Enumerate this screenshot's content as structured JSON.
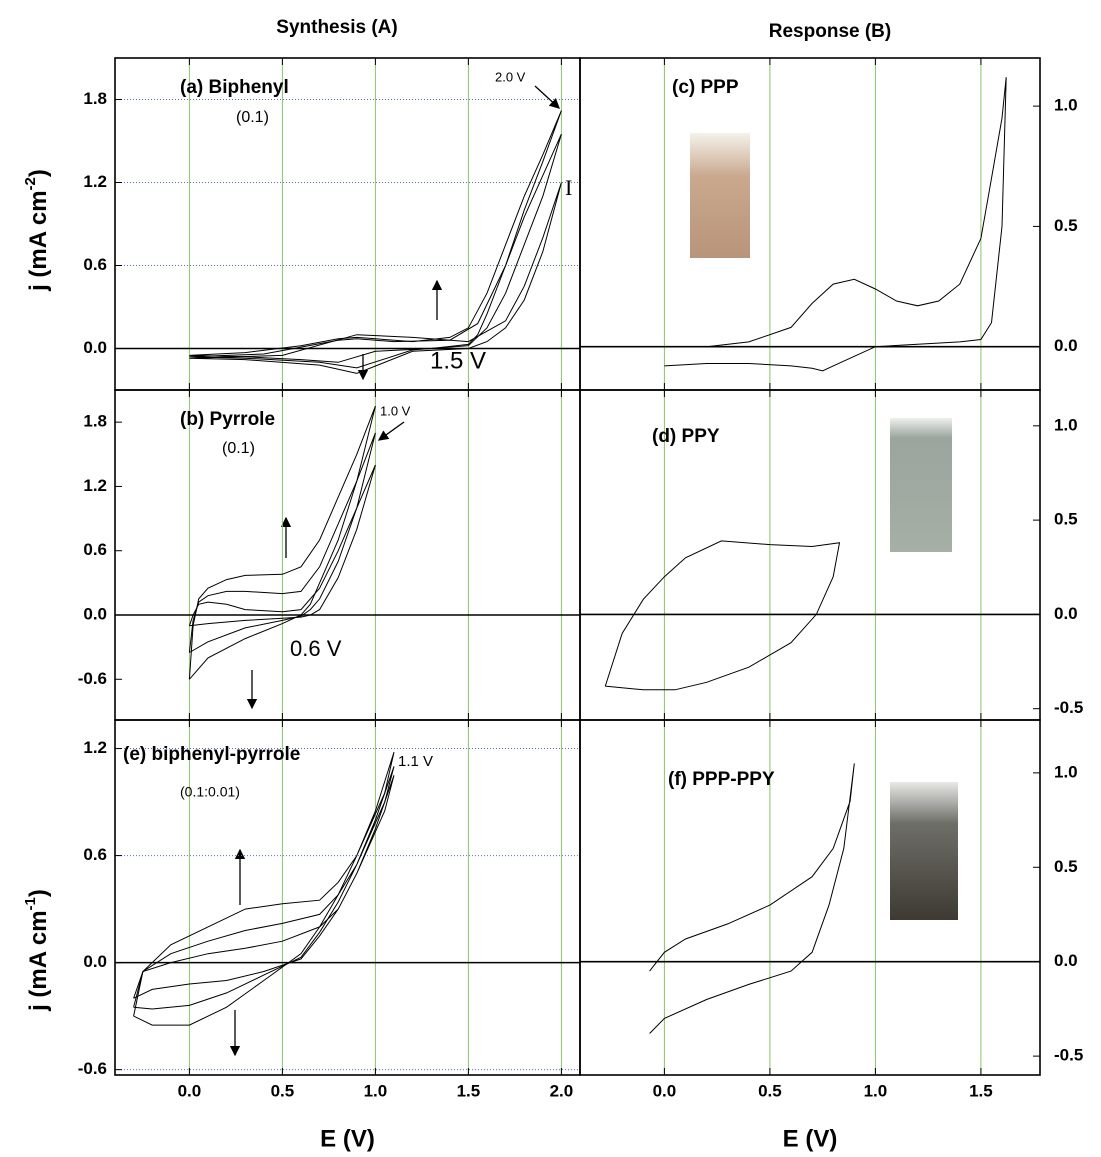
{
  "columns": [
    "Synthesis (A)",
    "Response (B)"
  ],
  "chart_data": [
    {
      "type": "line",
      "title": "(a) Biphenyl",
      "annotations": [
        "(0.1)",
        "2.0 V",
        "I",
        "1.5 V"
      ],
      "ylabel": "j (mA cm",
      "ylabel_sup": "-2",
      "ylabel_end": ")",
      "xlim": [
        -0.4,
        2.1
      ],
      "xticks": [
        {
          "value": 0,
          "label": "0.0"
        },
        0.5,
        {
          "value": 1,
          "label": "1.0"
        },
        1.5,
        {
          "value": 2,
          "label": "2.0"
        }
      ],
      "ylim": [
        -0.3,
        2.1
      ],
      "yticks": [
        {
          "value": 0,
          "label": "0.0"
        },
        0.6,
        1.2,
        1.8
      ],
      "yaxis": "left",
      "xgrid": true,
      "ygrid": true,
      "series": [
        {
          "color": "#000000",
          "x": [
            0,
            0.3,
            0.6,
            0.8,
            0.9,
            1.0,
            1.2,
            1.4,
            1.5,
            1.6,
            1.7,
            1.8,
            1.9,
            2.0,
            1.9,
            1.8,
            1.7,
            1.6,
            1.55,
            1.5,
            1.3,
            1.0,
            0.8,
            0.6,
            0.3,
            0
          ],
          "values": [
            -0.05,
            -0.03,
            0.02,
            0.07,
            0.08,
            0.07,
            0.05,
            0.08,
            0.15,
            0.4,
            0.75,
            1.1,
            1.4,
            1.72,
            1.35,
            1.0,
            0.6,
            0.25,
            0.1,
            0.03,
            0.0,
            -0.02,
            -0.1,
            -0.08,
            -0.06,
            -0.05
          ]
        },
        {
          "color": "#000000",
          "x": [
            0,
            0.4,
            0.8,
            0.9,
            1.1,
            1.4,
            1.55,
            1.7,
            1.8,
            1.9,
            2.0,
            1.9,
            1.8,
            1.7,
            1.6,
            1.5,
            1.2,
            0.9,
            0.7,
            0.3,
            0
          ],
          "values": [
            -0.06,
            -0.04,
            0.06,
            0.07,
            0.05,
            0.06,
            0.18,
            0.6,
            0.95,
            1.25,
            1.55,
            1.1,
            0.75,
            0.4,
            0.15,
            0.02,
            -0.01,
            -0.14,
            -0.1,
            -0.07,
            -0.06
          ]
        },
        {
          "color": "#000000",
          "x": [
            0,
            0.5,
            0.9,
            1.2,
            1.5,
            1.7,
            1.8,
            1.9,
            2.0,
            1.9,
            1.8,
            1.7,
            1.6,
            1.5,
            1.2,
            0.9,
            0.7,
            0.3,
            0
          ],
          "values": [
            -0.07,
            -0.05,
            0.1,
            0.08,
            0.05,
            0.2,
            0.45,
            0.8,
            1.2,
            0.7,
            0.35,
            0.15,
            0.05,
            0.0,
            -0.02,
            -0.18,
            -0.12,
            -0.08,
            -0.07
          ]
        }
      ]
    },
    {
      "type": "line",
      "title": "(b) Pyrrole",
      "annotations": [
        "(0.1)",
        "1.0 V",
        "0.6 V"
      ],
      "xlim": [
        -0.4,
        2.1
      ],
      "xticks": [
        {
          "value": 0,
          "label": "0.0"
        },
        0.5,
        {
          "value": 1,
          "label": "1.0"
        },
        1.5,
        {
          "value": 2,
          "label": "2.0"
        }
      ],
      "ylim": [
        -0.98,
        2.1
      ],
      "yticks": [
        -0.6,
        {
          "value": 0,
          "label": "0.0"
        },
        0.6,
        1.2,
        1.8
      ],
      "yaxis": "left",
      "xgrid": true,
      "ygrid": false,
      "series": [
        {
          "color": "#000000",
          "x": [
            0,
            0.02,
            0.05,
            0.1,
            0.2,
            0.3,
            0.5,
            0.6,
            0.7,
            0.8,
            0.9,
            1.0,
            0.95,
            0.9,
            0.8,
            0.7,
            0.65,
            0.6,
            0.5,
            0.3,
            0.1,
            0
          ],
          "values": [
            -0.6,
            -0.1,
            0.15,
            0.25,
            0.33,
            0.37,
            0.38,
            0.45,
            0.7,
            1.1,
            1.5,
            1.95,
            1.6,
            1.25,
            0.7,
            0.3,
            0.1,
            0.0,
            -0.08,
            -0.22,
            -0.4,
            -0.6
          ]
        },
        {
          "color": "#000000",
          "x": [
            0,
            0.02,
            0.05,
            0.1,
            0.2,
            0.3,
            0.5,
            0.6,
            0.7,
            0.8,
            0.9,
            1.0,
            0.95,
            0.9,
            0.8,
            0.7,
            0.65,
            0.6,
            0.5,
            0.3,
            0.1,
            0
          ],
          "values": [
            -0.35,
            -0.05,
            0.12,
            0.18,
            0.22,
            0.22,
            0.2,
            0.22,
            0.45,
            0.85,
            1.25,
            1.7,
            1.35,
            1.0,
            0.5,
            0.15,
            0.05,
            -0.01,
            -0.05,
            -0.12,
            -0.25,
            -0.35
          ]
        },
        {
          "color": "#000000",
          "x": [
            0,
            0.02,
            0.05,
            0.1,
            0.2,
            0.3,
            0.5,
            0.6,
            0.7,
            0.8,
            0.9,
            1.0,
            0.95,
            0.9,
            0.8,
            0.7,
            0.65,
            0.6,
            0.5,
            0.3,
            0.1,
            0
          ],
          "values": [
            -0.1,
            0.0,
            0.1,
            0.12,
            0.1,
            0.05,
            0.03,
            0.05,
            0.25,
            0.6,
            1.0,
            1.4,
            1.1,
            0.8,
            0.35,
            0.05,
            0.0,
            -0.02,
            -0.03,
            -0.05,
            -0.08,
            -0.1
          ]
        }
      ]
    },
    {
      "type": "line",
      "title": "(c) PPP",
      "xlim": [
        -0.4,
        1.78
      ],
      "xticks": [
        {
          "value": 0,
          "label": "0.0"
        },
        0.5,
        {
          "value": 1,
          "label": "1.0"
        },
        1.5
      ],
      "ylim": [
        -0.18,
        1.2
      ],
      "yticks": [
        {
          "value": 0,
          "label": "0.0"
        },
        0.5,
        {
          "value": 1,
          "label": "1.0"
        }
      ],
      "yaxis": "right",
      "xgrid": true,
      "ygrid": false,
      "series": [
        {
          "color": "#000000",
          "x": [
            0,
            0.2,
            0.4,
            0.6,
            0.7,
            0.8,
            0.9,
            1.0,
            1.1,
            1.2,
            1.3,
            1.4,
            1.5,
            1.55,
            1.6,
            1.62,
            1.6,
            1.55,
            1.5,
            1.4,
            1.2,
            1.0,
            0.9,
            0.8,
            0.75,
            0.7,
            0.6,
            0.4,
            0.2,
            0
          ],
          "values": [
            0,
            0.0,
            0.02,
            0.08,
            0.18,
            0.26,
            0.28,
            0.24,
            0.19,
            0.17,
            0.19,
            0.26,
            0.45,
            0.7,
            0.95,
            1.12,
            0.5,
            0.1,
            0.03,
            0.02,
            0.01,
            0.0,
            -0.04,
            -0.08,
            -0.1,
            -0.09,
            -0.08,
            -0.07,
            -0.07,
            -0.08
          ]
        }
      ]
    },
    {
      "type": "line",
      "title": "(d) PPY",
      "xlim": [
        -0.4,
        1.78
      ],
      "xticks": [
        {
          "value": 0,
          "label": "0.0"
        },
        0.5,
        {
          "value": 1,
          "label": "1.0"
        },
        1.5
      ],
      "ylim": [
        -0.56,
        1.19
      ],
      "yticks": [
        -0.5,
        {
          "value": 0,
          "label": "0.0"
        },
        0.5,
        {
          "value": 1,
          "label": "1.0"
        }
      ],
      "yaxis": "right",
      "xgrid": true,
      "ygrid": false,
      "series": [
        {
          "color": "#000000",
          "x": [
            -0.28,
            -0.2,
            -0.1,
            0.0,
            0.1,
            0.27,
            0.5,
            0.7,
            0.83,
            0.8,
            0.72,
            0.6,
            0.4,
            0.2,
            0.05,
            -0.1,
            -0.28
          ],
          "values": [
            -0.38,
            -0.1,
            0.08,
            0.2,
            0.3,
            0.39,
            0.37,
            0.36,
            0.38,
            0.2,
            0.0,
            -0.15,
            -0.28,
            -0.36,
            -0.4,
            -0.4,
            -0.38
          ]
        }
      ]
    },
    {
      "type": "line",
      "title": "(e) biphenyl-pyrrole",
      "annotations": [
        "(0.1:0.01)",
        "1.1 V"
      ],
      "ylabel": "j (mA cm",
      "ylabel_sup": "-1",
      "ylabel_end": ")",
      "xlabel": "E (V)",
      "xlim": [
        -0.4,
        2.1
      ],
      "xticks": [
        {
          "value": 0,
          "label": "0.0"
        },
        0.5,
        {
          "value": 1,
          "label": "1.0"
        },
        1.5,
        {
          "value": 2,
          "label": "2.0"
        }
      ],
      "ylim": [
        -0.63,
        1.36
      ],
      "yticks": [
        -0.6,
        {
          "value": 0,
          "label": "0.0"
        },
        0.6,
        1.2
      ],
      "yaxis": "left",
      "xgrid": true,
      "ygrid": true,
      "series": [
        {
          "color": "#000000",
          "x": [
            -0.3,
            -0.25,
            -0.1,
            0.1,
            0.3,
            0.5,
            0.7,
            0.8,
            0.9,
            1.0,
            1.1,
            1.05,
            0.9,
            0.8,
            0.7,
            0.6,
            0.4,
            0.2,
            0.0,
            -0.2,
            -0.3
          ],
          "values": [
            -0.3,
            -0.05,
            0.1,
            0.2,
            0.3,
            0.33,
            0.35,
            0.45,
            0.6,
            0.85,
            1.18,
            0.95,
            0.6,
            0.38,
            0.2,
            0.05,
            -0.1,
            -0.25,
            -0.35,
            -0.35,
            -0.3
          ]
        },
        {
          "color": "#000000",
          "x": [
            -0.3,
            -0.25,
            -0.1,
            0.1,
            0.3,
            0.5,
            0.7,
            0.8,
            0.9,
            1.0,
            1.1,
            1.05,
            0.9,
            0.8,
            0.7,
            0.6,
            0.4,
            0.2,
            0.0,
            -0.2,
            -0.3
          ],
          "values": [
            -0.25,
            -0.05,
            0.05,
            0.12,
            0.18,
            0.22,
            0.27,
            0.38,
            0.55,
            0.8,
            1.1,
            0.9,
            0.55,
            0.34,
            0.17,
            0.03,
            -0.07,
            -0.17,
            -0.24,
            -0.26,
            -0.25
          ]
        },
        {
          "color": "#000000",
          "x": [
            -0.3,
            -0.25,
            -0.1,
            0.1,
            0.3,
            0.5,
            0.7,
            0.8,
            0.9,
            1.0,
            1.1,
            1.05,
            0.9,
            0.8,
            0.7,
            0.6,
            0.4,
            0.2,
            0.0,
            -0.2,
            -0.3
          ],
          "values": [
            -0.2,
            -0.05,
            0.0,
            0.05,
            0.08,
            0.12,
            0.2,
            0.3,
            0.5,
            0.75,
            1.05,
            0.85,
            0.5,
            0.3,
            0.15,
            0.02,
            -0.05,
            -0.1,
            -0.12,
            -0.15,
            -0.2
          ]
        }
      ]
    },
    {
      "type": "line",
      "title": "(f) PPP-PPY",
      "xlabel": "E (V)",
      "xlim": [
        -0.4,
        1.78
      ],
      "xticks": [
        {
          "value": 0,
          "label": "0.0"
        },
        0.5,
        {
          "value": 1,
          "label": "1.0"
        },
        1.5
      ],
      "ylim": [
        -0.6,
        1.28
      ],
      "yticks": [
        -0.5,
        {
          "value": 0,
          "label": "0.0"
        },
        0.5,
        {
          "value": 1,
          "label": "1.0"
        }
      ],
      "yaxis": "right",
      "xgrid": true,
      "ygrid": false,
      "series": [
        {
          "color": "#000000",
          "x": [
            -0.07,
            0.0,
            0.1,
            0.3,
            0.5,
            0.7,
            0.8,
            0.88,
            0.9,
            0.85,
            0.78,
            0.7,
            0.6,
            0.4,
            0.2,
            0.0,
            -0.07
          ],
          "values": [
            -0.05,
            0.05,
            0.12,
            0.2,
            0.3,
            0.45,
            0.6,
            0.85,
            1.05,
            0.6,
            0.3,
            0.05,
            -0.05,
            -0.12,
            -0.2,
            -0.3,
            -0.38
          ]
        }
      ]
    }
  ]
}
